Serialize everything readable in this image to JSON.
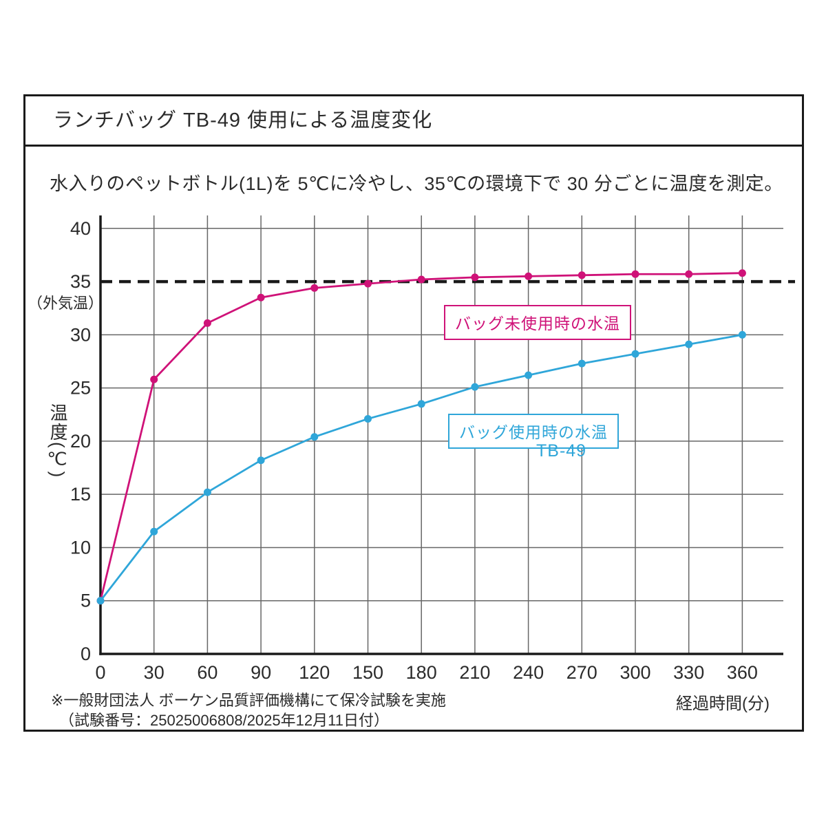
{
  "header": {
    "title": "ランチバッグ TB-49 使用による温度変化"
  },
  "subtitle": "水入りのペットボトル(1L)を 5℃に冷やし、35℃の環境下で 30 分ごとに温度を測定。",
  "chart_data": {
    "type": "line",
    "x": [
      0,
      30,
      60,
      90,
      120,
      150,
      180,
      210,
      240,
      270,
      300,
      330,
      360
    ],
    "series": [
      {
        "name": "バッグ未使用時の水温",
        "color": "#cf1278",
        "values": [
          5.0,
          25.8,
          31.1,
          33.5,
          34.4,
          34.8,
          35.2,
          35.4,
          35.5,
          35.6,
          35.7,
          35.7,
          35.8
        ]
      },
      {
        "name": "バッグ使用時の水温",
        "sublabel": "TB-49",
        "color": "#2fa6d9",
        "values": [
          5.0,
          11.5,
          15.2,
          18.2,
          20.4,
          22.1,
          23.5,
          25.1,
          26.2,
          27.3,
          28.2,
          29.1,
          30.0
        ]
      }
    ],
    "reference_line": {
      "value": 35,
      "label": "（外気温）",
      "style": "dashed",
      "color": "#1a1a1a"
    },
    "xlabel": "経過時間(分)",
    "ylabel": "温度(℃)",
    "xlim": [
      0,
      360
    ],
    "ylim": [
      0,
      40
    ],
    "x_ticks": [
      0,
      30,
      60,
      90,
      120,
      150,
      180,
      210,
      240,
      270,
      300,
      330,
      360
    ],
    "y_ticks": [
      0,
      5,
      10,
      15,
      20,
      25,
      30,
      35,
      40
    ],
    "grid": true,
    "grid_color": "#666666",
    "axis_color": "#1a1a1a",
    "legend_position": "inside-plot"
  },
  "footnote": {
    "line1": "※一般財団法人 ボーケン品質評価機構にて保冷試験を実施",
    "line2": "（試験番号：25025006808/2025年12月11日付）"
  }
}
